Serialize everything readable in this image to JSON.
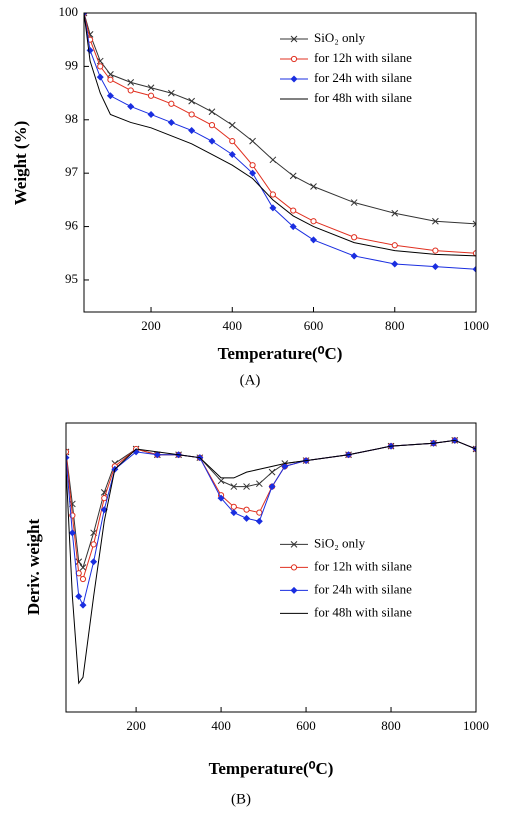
{
  "chart_data": [
    {
      "type": "line",
      "caption": "(A)",
      "x_label": "Temperature(⁰C)",
      "y_label": "Weight (%)",
      "xlim": [
        35,
        1000
      ],
      "ylim": [
        94.4,
        100
      ],
      "xticks": [
        200,
        400,
        600,
        800,
        1000
      ],
      "yticks": [
        95,
        96,
        97,
        98,
        99,
        100
      ],
      "legend_position": "upper right",
      "x": [
        35,
        50,
        75,
        100,
        150,
        200,
        250,
        300,
        350,
        400,
        450,
        500,
        550,
        600,
        700,
        800,
        900,
        1000
      ],
      "series": [
        {
          "name": "SiO₂ only",
          "color": "#333333",
          "marker": "x",
          "values": [
            100,
            99.6,
            99.1,
            98.85,
            98.7,
            98.6,
            98.5,
            98.35,
            98.15,
            97.9,
            97.6,
            97.25,
            96.95,
            96.75,
            96.45,
            96.25,
            96.1,
            96.05
          ]
        },
        {
          "name": "for 12h with silane",
          "color": "#e03020",
          "marker": "circle-open",
          "values": [
            100,
            99.5,
            99.0,
            98.75,
            98.55,
            98.45,
            98.3,
            98.1,
            97.9,
            97.6,
            97.15,
            96.6,
            96.3,
            96.1,
            95.8,
            95.65,
            95.55,
            95.5
          ]
        },
        {
          "name": "for 24h with silane",
          "color": "#1a2ee0",
          "marker": "diamond",
          "values": [
            100,
            99.3,
            98.8,
            98.45,
            98.25,
            98.1,
            97.95,
            97.8,
            97.6,
            97.35,
            97.0,
            96.35,
            96.0,
            95.75,
            95.45,
            95.3,
            95.25,
            95.2
          ]
        },
        {
          "name": "for 48h with silane",
          "color": "#000000",
          "marker": "none",
          "values": [
            100,
            99.1,
            98.5,
            98.1,
            97.95,
            97.85,
            97.7,
            97.55,
            97.35,
            97.15,
            96.9,
            96.5,
            96.2,
            96.0,
            95.7,
            95.55,
            95.48,
            95.45
          ]
        }
      ]
    },
    {
      "type": "line",
      "caption": "(B)",
      "x_label": "Temperature(⁰C)",
      "y_label": "Deriv. weight",
      "xlim": [
        35,
        1000
      ],
      "ylim": [
        0,
        100
      ],
      "xticks": [
        200,
        400,
        600,
        800,
        1000
      ],
      "legend_position": "center right",
      "x": [
        35,
        50,
        65,
        75,
        100,
        125,
        150,
        200,
        250,
        300,
        350,
        400,
        430,
        460,
        490,
        520,
        550,
        600,
        700,
        800,
        900,
        950,
        1000
      ],
      "series": [
        {
          "name": "SiO₂ only",
          "color": "#333333",
          "marker": "x",
          "values": [
            90,
            72,
            52,
            50,
            62,
            76,
            86,
            91,
            89,
            89,
            88,
            80,
            78,
            78,
            79,
            83,
            86,
            87,
            89,
            92,
            93,
            94,
            91
          ]
        },
        {
          "name": "for 12h with silane",
          "color": "#e03020",
          "marker": "circle-open",
          "values": [
            90,
            68,
            48,
            46,
            58,
            74,
            85,
            91,
            89,
            89,
            88,
            75,
            71,
            70,
            69,
            78,
            85,
            87,
            89,
            92,
            93,
            94,
            91
          ]
        },
        {
          "name": "for 24h with silane",
          "color": "#1a2ee0",
          "marker": "diamond",
          "values": [
            88,
            62,
            40,
            37,
            52,
            70,
            84,
            90,
            89,
            89,
            88,
            74,
            69,
            67,
            66,
            78,
            85,
            87,
            89,
            92,
            93,
            94,
            91
          ]
        },
        {
          "name": "for 48h with silane",
          "color": "#000000",
          "marker": "none",
          "values": [
            85,
            40,
            10,
            12,
            40,
            66,
            84,
            91,
            90,
            89,
            88,
            81,
            81,
            83,
            84,
            85,
            86,
            87,
            89,
            92,
            93,
            94,
            91
          ]
        }
      ]
    }
  ]
}
